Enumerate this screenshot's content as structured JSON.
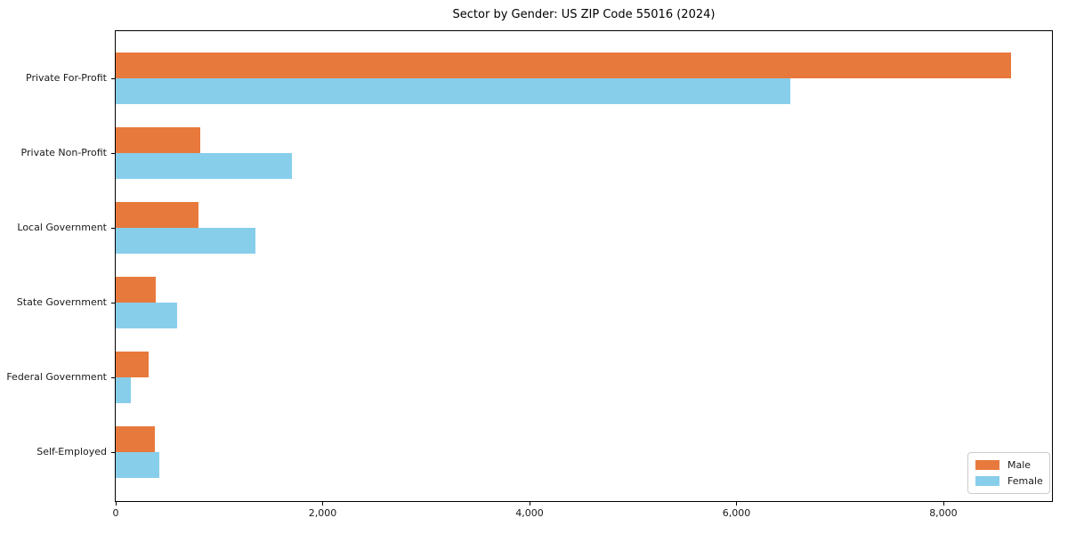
{
  "title": "Sector by Gender: US ZIP Code 55016 (2024)",
  "chart_data": {
    "type": "bar",
    "orientation": "horizontal",
    "title": "Sector by Gender: US ZIP Code 55016 (2024)",
    "categories": [
      "Private For-Profit",
      "Private Non-Profit",
      "Local Government",
      "State Government",
      "Federal Government",
      "Self-Employed"
    ],
    "series": [
      {
        "name": "Male",
        "color": "#E8793C",
        "values": [
          8650,
          820,
          800,
          390,
          320,
          380
        ]
      },
      {
        "name": "Female",
        "color": "#87CEEB",
        "values": [
          6520,
          1700,
          1350,
          590,
          150,
          425
        ]
      }
    ],
    "xlabel": "",
    "ylabel": "",
    "xlim": [
      0,
      9050
    ],
    "x_ticks": [
      0,
      2000,
      4000,
      6000,
      8000
    ],
    "x_tick_labels": [
      "0",
      "2,000",
      "4,000",
      "6,000",
      "8,000"
    ],
    "grid": false,
    "legend_position": "lower right"
  },
  "legend": {
    "items": [
      {
        "label": "Male",
        "color": "#E8793C"
      },
      {
        "label": "Female",
        "color": "#87CEEB"
      }
    ]
  }
}
